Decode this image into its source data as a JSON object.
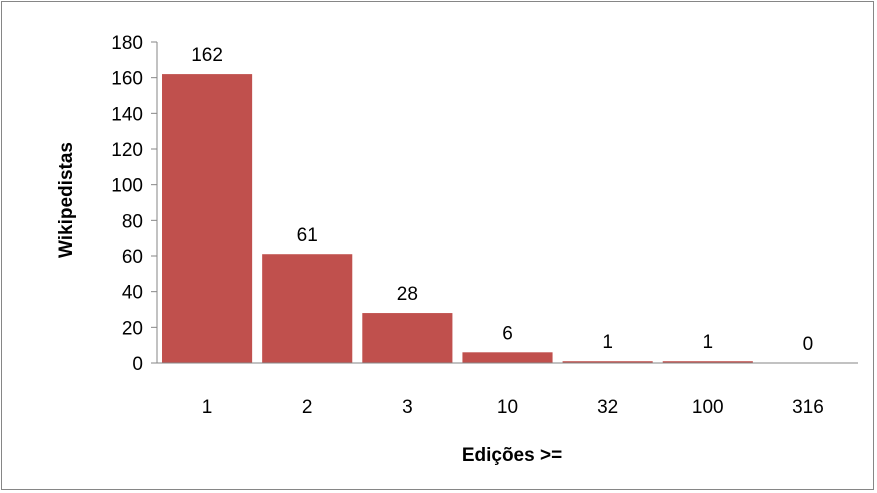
{
  "chart_data": {
    "type": "bar",
    "categories": [
      "1",
      "2",
      "3",
      "10",
      "32",
      "100",
      "316"
    ],
    "values": [
      162,
      61,
      28,
      6,
      1,
      1,
      0
    ],
    "data_labels": [
      "162",
      "61",
      "28",
      "6",
      "1",
      "1",
      "0"
    ],
    "xlabel": "Edições >=",
    "ylabel": "Wikipedistas",
    "ylim": [
      0,
      180
    ],
    "yticks": [
      "0",
      "20",
      "40",
      "60",
      "80",
      "100",
      "120",
      "140",
      "160",
      "180"
    ],
    "grid": false,
    "legend": "none",
    "bar_color": "#C0504D"
  }
}
